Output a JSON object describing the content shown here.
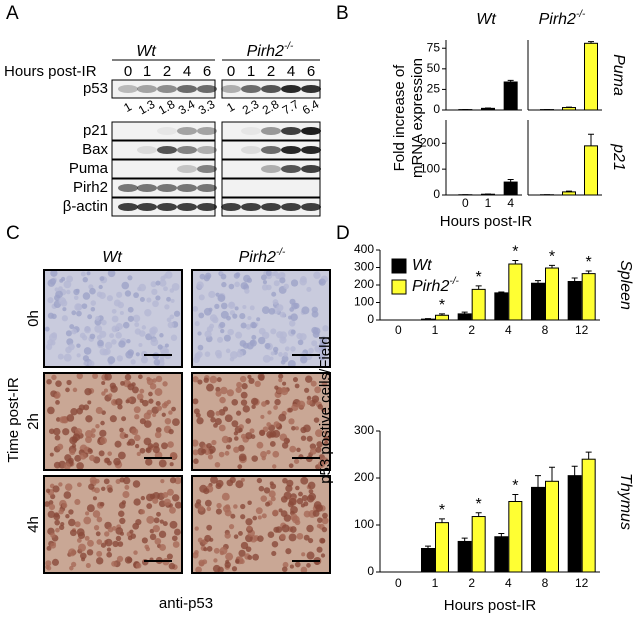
{
  "panel_a": {
    "letter": "A",
    "groups": [
      {
        "name": "Wt"
      },
      {
        "name": "Pirh2",
        "name_sup": "-/-"
      }
    ],
    "lane_label": "Hours post-IR",
    "lanes": [
      "0",
      "1",
      "2",
      "4",
      "6"
    ],
    "rows": [
      "p53",
      "p21",
      "Bax",
      "Puma",
      "Pirh2",
      "β-actin"
    ],
    "quantification": [
      "1",
      "1.3",
      "1.8",
      "3.4",
      "3.3",
      "1",
      "2.3",
      "2.8",
      "7.7",
      "6.4"
    ]
  },
  "panel_b": {
    "letter": "B",
    "groups": [
      {
        "name": "Wt"
      },
      {
        "name": "Pirh2",
        "name_sup": "-/-"
      }
    ],
    "y_label": [
      "Fold increase of",
      "mRNA expression"
    ],
    "x_label": "Hours post-IR"
  },
  "panel_c": {
    "letter": "C",
    "columns": [
      {
        "name": "Wt"
      },
      {
        "name": "Pirh2",
        "name_sup": "-/-"
      }
    ],
    "rows": [
      "0h",
      "2h",
      "4h"
    ],
    "y_label": "Time post-IR",
    "caption": "anti-p53"
  },
  "panel_d": {
    "letter": "D",
    "y_label": "p53 postive cells/Field",
    "x_label": "Hours post-IR"
  },
  "chart_data": [
    {
      "type": "bar",
      "label": "Puma",
      "ylim": [
        0,
        85
      ],
      "yticks": [
        0,
        25,
        50,
        75
      ],
      "series": [
        {
          "color": "#000000",
          "values": [
            0.5,
            2,
            34
          ],
          "errors": [
            0,
            0.5,
            2
          ]
        },
        {
          "color": "#ffff33",
          "values": [
            0.5,
            3,
            81
          ],
          "errors": [
            0,
            0.5,
            2
          ]
        }
      ]
    },
    {
      "type": "bar",
      "label": "p21",
      "categories": [
        "0",
        "1",
        "4"
      ],
      "ylim": [
        0,
        290
      ],
      "yticks": [
        0,
        100,
        200
      ],
      "series": [
        {
          "color": "#000000",
          "values": [
            1,
            3,
            50
          ],
          "errors": [
            0,
            1,
            10
          ]
        },
        {
          "color": "#ffff33",
          "values": [
            1,
            12,
            190
          ],
          "errors": [
            0,
            3,
            45
          ]
        }
      ]
    },
    {
      "type": "bar",
      "label": "Spleen",
      "legend": true,
      "categories": [
        "0",
        "1",
        "2",
        "4",
        "8",
        "12"
      ],
      "ylim": [
        0,
        400
      ],
      "yticks": [
        0,
        100,
        200,
        300,
        400
      ],
      "series": [
        {
          "name": "Wt",
          "color": "#000000",
          "values": [
            0,
            5,
            35,
            155,
            210,
            220
          ],
          "errors": [
            0,
            3,
            10,
            5,
            15,
            20
          ]
        },
        {
          "name": "Pirh2",
          "name_sup": "-/-",
          "color": "#ffff33",
          "values": [
            0,
            27,
            175,
            320,
            297,
            265
          ],
          "errors": [
            0,
            8,
            20,
            20,
            15,
            15
          ],
          "annotations": [
            null,
            "*",
            "*",
            "*",
            "*",
            "*"
          ]
        }
      ]
    },
    {
      "type": "bar",
      "label": "Thymus",
      "categories": [
        "0",
        "1",
        "2",
        "4",
        "8",
        "12"
      ],
      "ylim": [
        0,
        300
      ],
      "yticks": [
        0,
        100,
        200,
        300
      ],
      "series": [
        {
          "color": "#000000",
          "values": [
            0,
            50,
            65,
            75,
            180,
            205
          ],
          "errors": [
            0,
            5,
            7,
            7,
            25,
            20
          ]
        },
        {
          "color": "#ffff33",
          "values": [
            0,
            105,
            118,
            150,
            193,
            240
          ],
          "errors": [
            0,
            8,
            8,
            15,
            30,
            15
          ],
          "annotations": [
            null,
            "*",
            "*",
            "*",
            null,
            null
          ]
        }
      ]
    }
  ]
}
